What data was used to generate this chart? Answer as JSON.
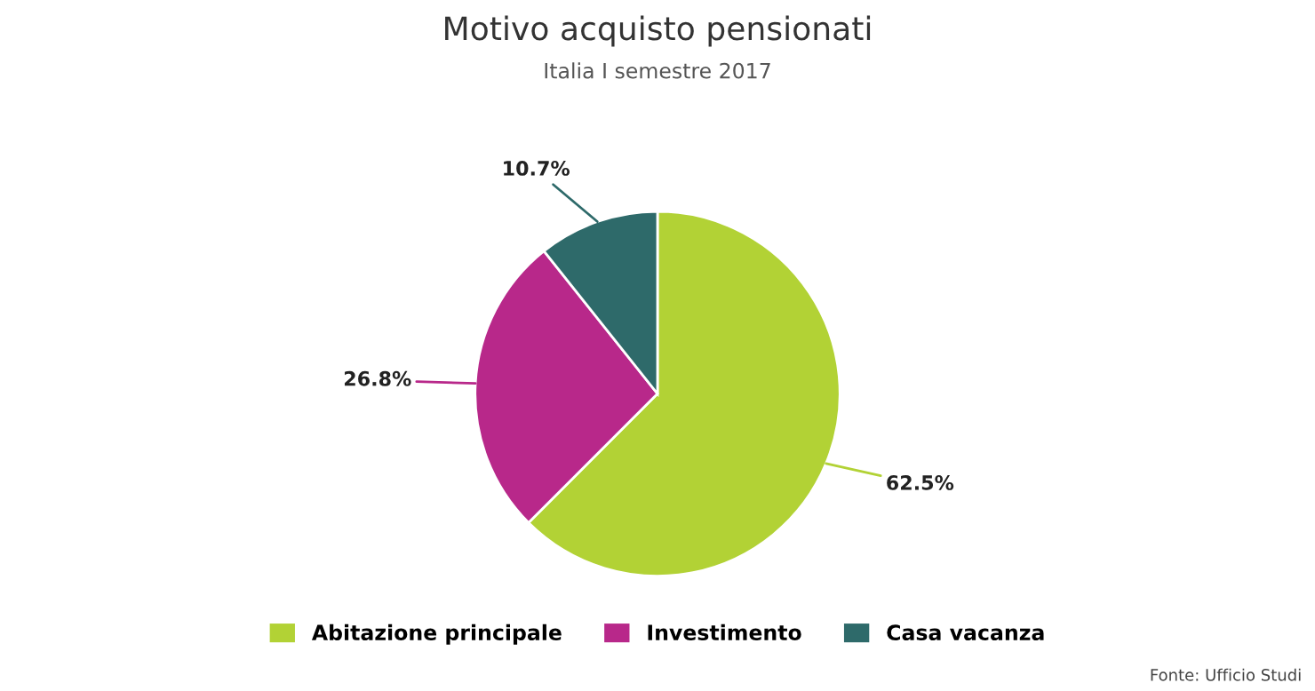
{
  "chart_data": {
    "type": "pie",
    "title": "Motivo acquisto pensionati",
    "subtitle": "Italia I semestre 2017",
    "categories": [
      "Abitazione principale",
      "Investimento",
      "Casa vacanza"
    ],
    "values": [
      62.5,
      26.8,
      10.7
    ],
    "colors": [
      "#b2d235",
      "#b8288a",
      "#2e6a6a"
    ],
    "value_labels": [
      "62.5%",
      "26.8%",
      "10.7%"
    ],
    "legend": "bottom",
    "annotations": [
      "Fonte: Ufficio Studi"
    ]
  }
}
